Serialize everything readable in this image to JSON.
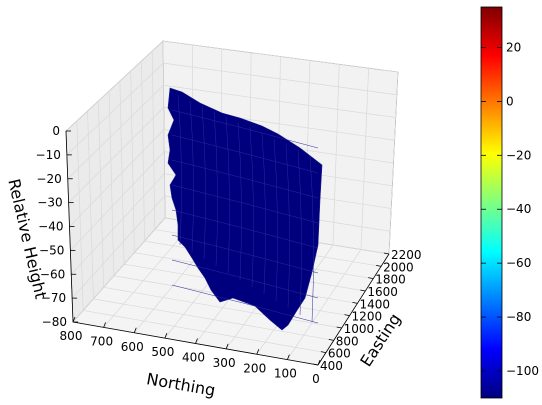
{
  "chart_data": {
    "type": "surface",
    "colormap": "jet",
    "surface_color": "#00007f",
    "pane_color": "#f2f2f2",
    "grid": true,
    "xlabel": "Easting",
    "ylabel": "Northing",
    "zlabel": "Relative Height",
    "x_ticks": [
      "400",
      "600",
      "800",
      "1000",
      "1200",
      "1400",
      "1600",
      "1800",
      "2000",
      "2200"
    ],
    "y_ticks": [
      "800",
      "700",
      "600",
      "500",
      "400",
      "300",
      "200",
      "100",
      "0"
    ],
    "z_ticks": [
      "0",
      "−10",
      "−20",
      "−30",
      "−40",
      "−50",
      "−60",
      "−70",
      "−80"
    ],
    "z_range": [
      -80,
      0
    ],
    "colorbar": {
      "range": [
        -110,
        35
      ],
      "ticks": [
        "20",
        "0",
        "−20",
        "−40",
        "−60",
        "−80",
        "−100"
      ],
      "tick_values": [
        20,
        0,
        -20,
        -40,
        -60,
        -80,
        -100
      ],
      "colors": [
        "#00007f",
        "#0000ff",
        "#007fff",
        "#00ffff",
        "#7fff7f",
        "#ffff00",
        "#ff7f00",
        "#ff0000",
        "#7f0000"
      ]
    }
  }
}
